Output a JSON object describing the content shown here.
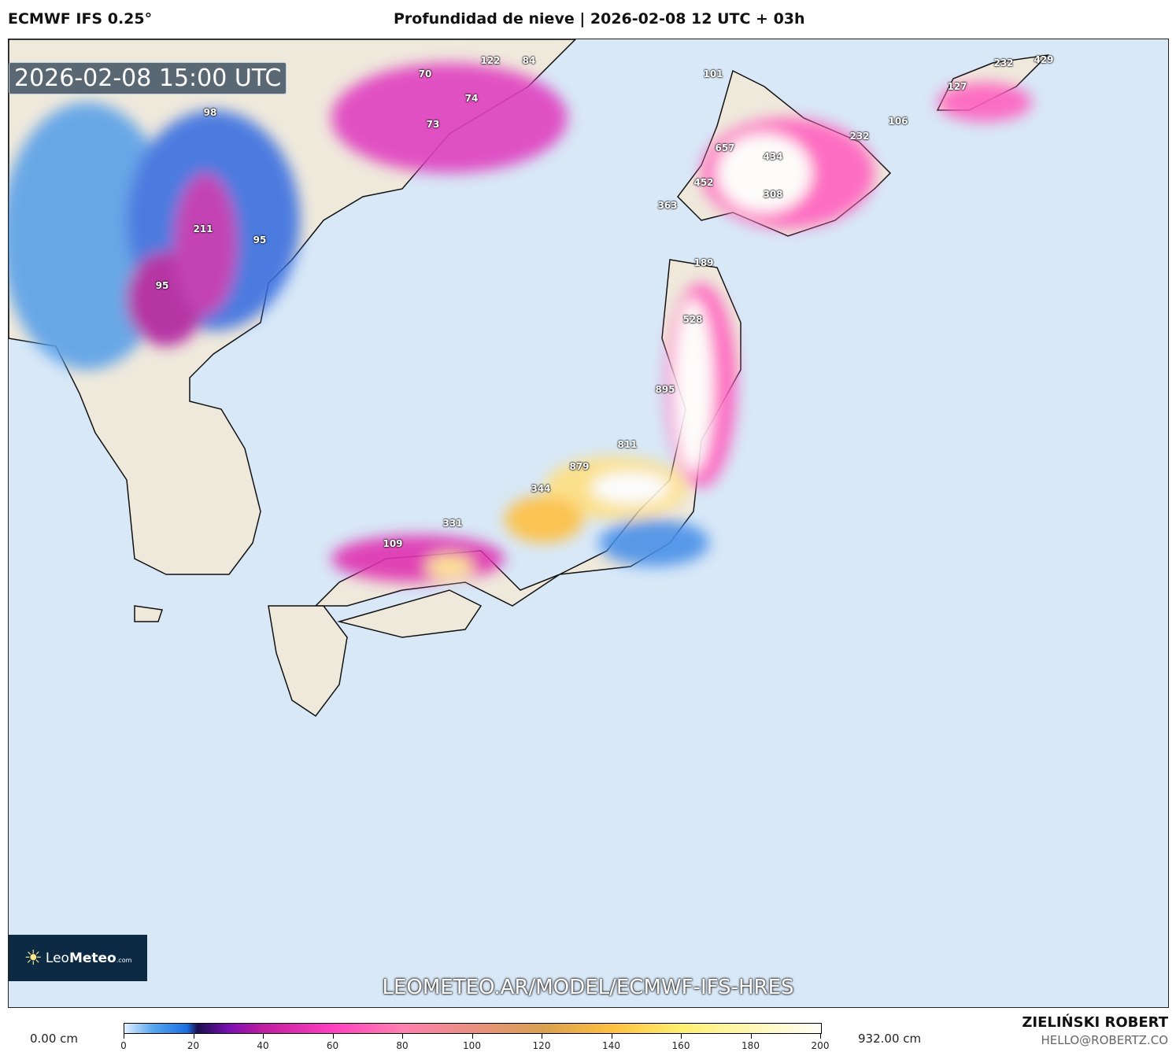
{
  "header": {
    "model": "ECMWF IFS 0.25°",
    "title": "Profundidad de nieve | 2026-02-08 12 UTC + 03h"
  },
  "map": {
    "valid_time": "2026-02-08 15:00 UTC",
    "url": "LEOMETEO.AR/MODEL/ECMWF-IFS-HRES",
    "logo": {
      "light": "Leo",
      "bold": "Meteo",
      ".com": ".com"
    },
    "ocean_color": "#d8e8f7",
    "land_color": "#efe9dc",
    "labels": [
      "70",
      "122",
      "84",
      "74",
      "73",
      "98",
      "211",
      "95",
      "95",
      "101",
      "232",
      "429",
      "127",
      "106",
      "232",
      "657",
      "434",
      "452",
      "308",
      "363",
      "189",
      "528",
      "895",
      "811",
      "879",
      "344",
      "331",
      "109"
    ]
  },
  "colorbar": {
    "min_label": "0.00 cm",
    "max_label": "932.00 cm",
    "ticks": [
      "0",
      "20",
      "40",
      "60",
      "80",
      "100",
      "120",
      "140",
      "160",
      "180",
      "200"
    ]
  },
  "credit": {
    "name": "ZIELIŃSKI ROBERT",
    "email": "HELLO@ROBERTZ.CO"
  }
}
